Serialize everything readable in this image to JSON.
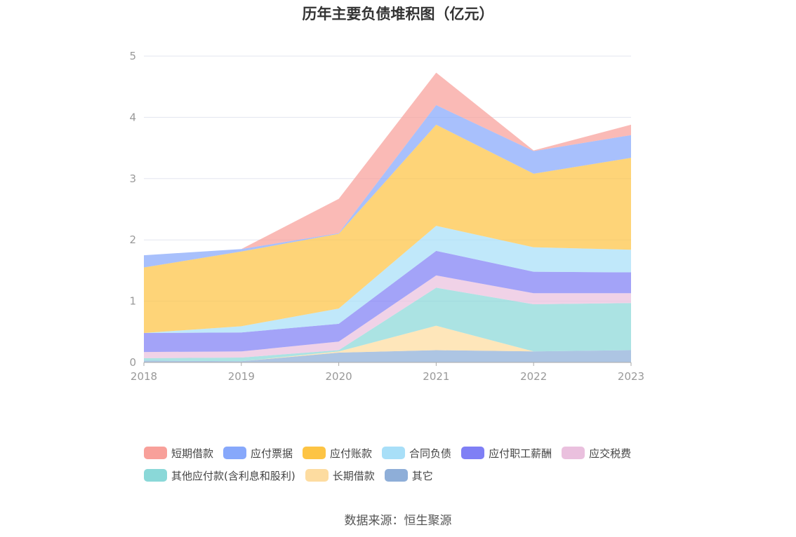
{
  "chart_data": {
    "type": "area",
    "stacked": true,
    "title": "历年主要负债堆积图（亿元）",
    "xlabel": "",
    "ylabel": "",
    "ylim": [
      0,
      5
    ],
    "yticks": [
      0,
      1,
      2,
      3,
      4,
      5
    ],
    "categories": [
      "2018",
      "2019",
      "2020",
      "2021",
      "2022",
      "2023"
    ],
    "grid": true,
    "legend_position": "bottom",
    "series": [
      {
        "name": "其它",
        "color": "#8eaed8",
        "values": [
          0.03,
          0.02,
          0.16,
          0.2,
          0.18,
          0.2
        ]
      },
      {
        "name": "长期借款",
        "color": "#fddca0",
        "values": [
          0.0,
          0.0,
          0.02,
          0.4,
          0.0,
          0.0
        ]
      },
      {
        "name": "其他应付款(含利息和股利)",
        "color": "#8ad8d8",
        "values": [
          0.04,
          0.06,
          0.02,
          0.62,
          0.77,
          0.77
        ]
      },
      {
        "name": "应交税费",
        "color": "#eac0de",
        "values": [
          0.1,
          0.1,
          0.14,
          0.2,
          0.18,
          0.16
        ]
      },
      {
        "name": "应付职工薪酬",
        "color": "#7f7ff5",
        "values": [
          0.31,
          0.31,
          0.29,
          0.4,
          0.35,
          0.34
        ]
      },
      {
        "name": "合同负债",
        "color": "#a8dff8",
        "values": [
          0.0,
          0.1,
          0.25,
          0.41,
          0.4,
          0.37
        ]
      },
      {
        "name": "应付账款",
        "color": "#fdc444",
        "values": [
          1.07,
          1.22,
          1.22,
          1.65,
          1.2,
          1.5
        ]
      },
      {
        "name": "应付票据",
        "color": "#87a8fb",
        "values": [
          0.2,
          0.04,
          0.01,
          0.32,
          0.37,
          0.37
        ]
      },
      {
        "name": "短期借款",
        "color": "#f8a09a",
        "values": [
          0.0,
          0.0,
          0.56,
          0.53,
          0.01,
          0.17
        ]
      }
    ]
  },
  "legend": {
    "row1": [
      {
        "label": "短期借款",
        "color": "#f8a09a"
      },
      {
        "label": "应付票据",
        "color": "#87a8fb"
      },
      {
        "label": "应付账款",
        "color": "#fdc444"
      },
      {
        "label": "合同负债",
        "color": "#a8dff8"
      },
      {
        "label": "应付职工薪酬",
        "color": "#7f7ff5"
      },
      {
        "label": "应交税费",
        "color": "#eac0de"
      }
    ],
    "row2": [
      {
        "label": "其他应付款(含利息和股利)",
        "color": "#8ad8d8"
      },
      {
        "label": "长期借款",
        "color": "#fddca0"
      },
      {
        "label": "其它",
        "color": "#8eaed8"
      }
    ]
  },
  "source": "数据来源：恒生聚源"
}
